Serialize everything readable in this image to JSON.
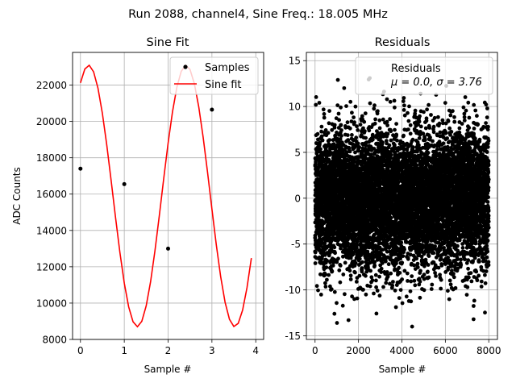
{
  "figure": {
    "suptitle": "Run 2088, channel4, Sine Freq.: 18.005 MHz"
  },
  "chart_data": [
    {
      "type": "line",
      "title": "Sine Fit",
      "xlabel": "Sample #",
      "ylabel": "ADC Counts",
      "xlim": [
        -0.18,
        4.18
      ],
      "ylim": [
        8000,
        23800
      ],
      "xticks": [
        0,
        1,
        2,
        3,
        4
      ],
      "yticks": [
        8000,
        10000,
        12000,
        14000,
        16000,
        18000,
        20000,
        22000
      ],
      "grid": true,
      "legend": {
        "placement": "top-right",
        "entries": [
          "Samples",
          "Sine fit"
        ]
      },
      "series": [
        {
          "name": "Samples",
          "kind": "scatter",
          "color": "#000000",
          "x": [
            0,
            1,
            2,
            3
          ],
          "y": [
            17400,
            16550,
            13000,
            20650
          ]
        },
        {
          "name": "Sine fit",
          "kind": "line",
          "color": "#ff0000",
          "fit": {
            "amplitude": 7200,
            "offset": 15900,
            "cycles_per_sample": 0.45,
            "phase": 1.0436,
            "x_start": 0,
            "x_end": 3.9,
            "x_step": 0.1
          }
        }
      ]
    },
    {
      "type": "scatter",
      "title": "Residuals",
      "xlabel": "Sample #",
      "ylabel": "",
      "xlim": [
        -400,
        8400
      ],
      "ylim": [
        -15.4,
        15.9
      ],
      "xticks": [
        0,
        2000,
        4000,
        6000,
        8000
      ],
      "yticks": [
        -15,
        -10,
        -5,
        0,
        5,
        10,
        15
      ],
      "grid": true,
      "legend": {
        "placement": "top-right",
        "title": "Residuals",
        "stats": "μ = 0.0, σ = 3.76"
      },
      "series": [
        {
          "name": "Residuals",
          "color": "#000000",
          "n_points": 8000,
          "x_range": [
            0,
            8000
          ],
          "mean": 0.0,
          "std": 3.76,
          "clip": [
            -14.2,
            13.2
          ],
          "highlighted_points": [
            {
              "x": 1050,
              "y": 12.9
            },
            {
              "x": 1340,
              "y": 12.0
            },
            {
              "x": 2520,
              "y": 13.1
            },
            {
              "x": 1010,
              "y": -13.6
            },
            {
              "x": 1540,
              "y": -13.3
            },
            {
              "x": 4470,
              "y": -14.0
            },
            {
              "x": 7300,
              "y": -13.2
            }
          ]
        }
      ]
    }
  ]
}
